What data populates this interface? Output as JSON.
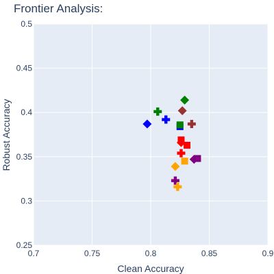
{
  "chart_data": {
    "type": "scatter",
    "title": "Frontier Analysis:",
    "xlabel": "Clean Accuracy",
    "ylabel": "Robust Accuracy",
    "xlim": [
      0.7,
      0.9
    ],
    "ylim": [
      0.25,
      0.5
    ],
    "xticks": [
      0.7,
      0.75,
      0.8,
      0.85,
      0.9
    ],
    "xtick_labels": [
      "0.7",
      "0.75",
      "0.8",
      "0.85",
      "0.9"
    ],
    "yticks": [
      0.25,
      0.3,
      0.35,
      0.4,
      0.45,
      0.5
    ],
    "ytick_labels": [
      "0.25",
      "0.3",
      "0.35",
      "0.4",
      "0.45",
      "0.5"
    ],
    "grid": true,
    "legend": false,
    "plot_background": "#e5ecf6",
    "grid_color": "#ffffff",
    "points": [
      {
        "x": 0.829,
        "y": 0.414,
        "color": "#008000",
        "symbol": "diamond"
      },
      {
        "x": 0.827,
        "y": 0.402,
        "color": "#993333",
        "symbol": "diamond"
      },
      {
        "x": 0.806,
        "y": 0.401,
        "color": "#008000",
        "symbol": "cross"
      },
      {
        "x": 0.797,
        "y": 0.387,
        "color": "#0000ff",
        "symbol": "diamond"
      },
      {
        "x": 0.813,
        "y": 0.392,
        "color": "#0000ff",
        "symbol": "cross"
      },
      {
        "x": 0.825,
        "y": 0.384,
        "color": "#0000ff",
        "symbol": "square"
      },
      {
        "x": 0.825,
        "y": 0.386,
        "color": "#008000",
        "symbol": "square"
      },
      {
        "x": 0.835,
        "y": 0.387,
        "color": "#993333",
        "symbol": "cross"
      },
      {
        "x": 0.826,
        "y": 0.369,
        "color": "#ff0000",
        "symbol": "square"
      },
      {
        "x": 0.826,
        "y": 0.366,
        "color": "#ff0000",
        "symbol": "diamond"
      },
      {
        "x": 0.831,
        "y": 0.363,
        "color": "#ff0000",
        "symbol": "square"
      },
      {
        "x": 0.826,
        "y": 0.354,
        "color": "#ff0000",
        "symbol": "cross"
      },
      {
        "x": 0.84,
        "y": 0.348,
        "color": "#800080",
        "symbol": "square"
      },
      {
        "x": 0.837,
        "y": 0.347,
        "color": "#800080",
        "symbol": "diamond"
      },
      {
        "x": 0.829,
        "y": 0.345,
        "color": "#ffa500",
        "symbol": "square"
      },
      {
        "x": 0.821,
        "y": 0.339,
        "color": "#ffa500",
        "symbol": "diamond"
      },
      {
        "x": 0.821,
        "y": 0.323,
        "color": "#800080",
        "symbol": "cross"
      },
      {
        "x": 0.823,
        "y": 0.316,
        "color": "#ffa500",
        "symbol": "cross"
      }
    ]
  }
}
